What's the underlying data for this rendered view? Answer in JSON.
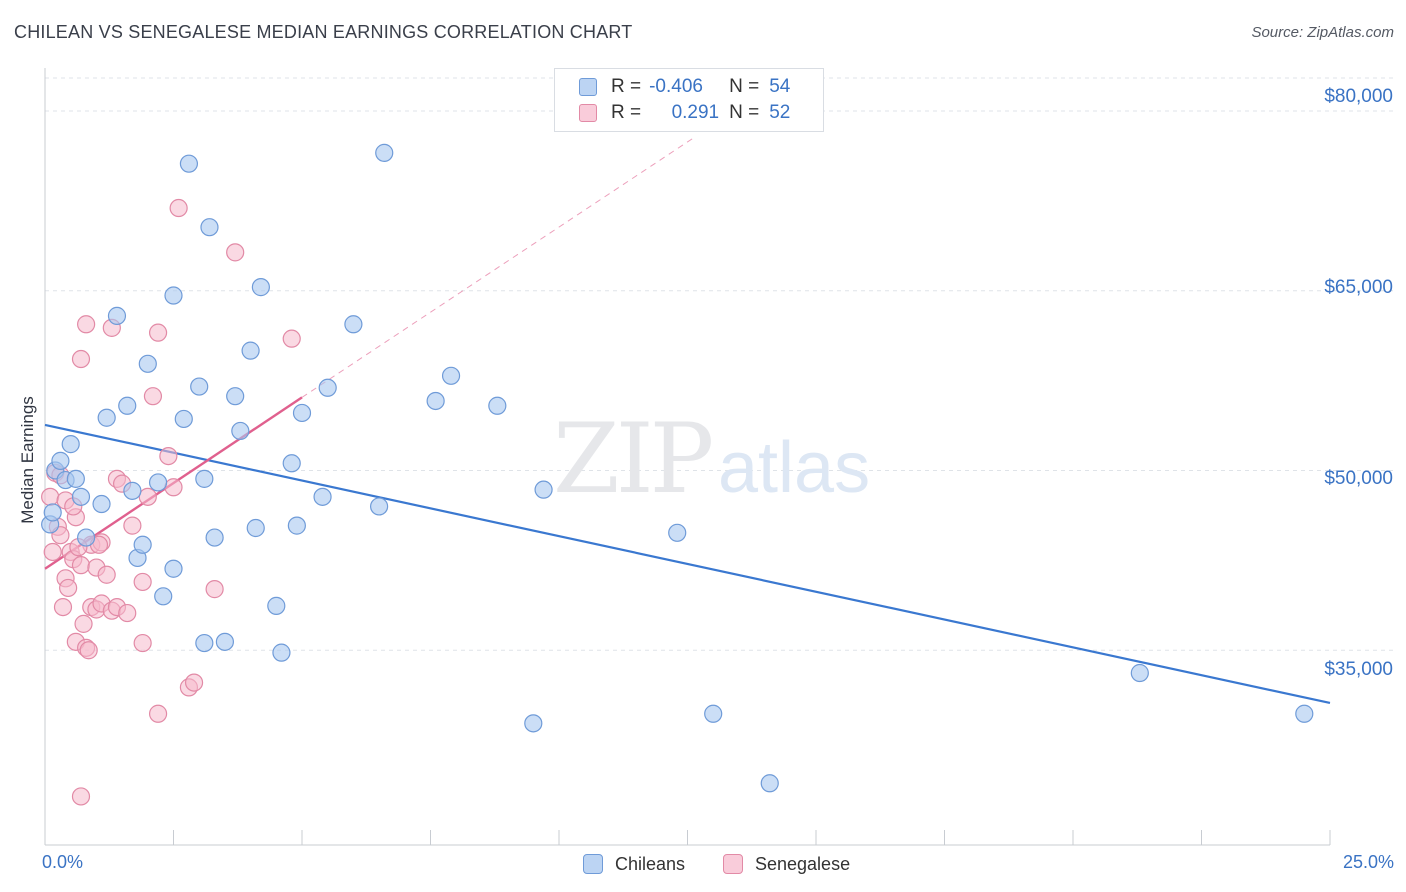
{
  "title": "CHILEAN VS SENEGALESE MEDIAN EARNINGS CORRELATION CHART",
  "source": "Source: ZipAtlas.com",
  "watermark": {
    "zip": "ZIP",
    "atlas": "atlas"
  },
  "legend_top": {
    "rows": [
      {
        "r_label": "R =",
        "r_value": "-0.406",
        "n_label": "N =",
        "n_value": "54"
      },
      {
        "r_label": "R =",
        "r_value": "0.291",
        "n_label": "N =",
        "n_value": "52"
      }
    ]
  },
  "colors": {
    "blue_fill": "#a9c8f0",
    "blue_stroke": "#6f9bd8",
    "blue_line": "#3a78d0",
    "pink_fill": "#f6b9cc",
    "pink_stroke": "#e28aa6",
    "pink_line": "#e0608e",
    "grid": "#dfe3e8",
    "axis_text": "#3a73c4"
  },
  "chart_data": {
    "type": "scatter",
    "title": "CHILEAN VS SENEGALESE MEDIAN EARNINGS CORRELATION CHART",
    "xlabel": "",
    "ylabel": "Median Earnings",
    "xlim": [
      0,
      25
    ],
    "ylim": [
      20000,
      83000
    ],
    "x_tick_labels": [
      "0.0%",
      "25.0%"
    ],
    "y_ticks": [
      35000,
      50000,
      65000,
      80000
    ],
    "y_tick_labels": [
      "$35,000",
      "$50,000",
      "$65,000",
      "$80,000"
    ],
    "series": [
      {
        "name": "Chileans",
        "r": -0.406,
        "n": 54,
        "trend": {
          "x": [
            0,
            25
          ],
          "y": [
            53800,
            30600
          ]
        },
        "points": [
          [
            0.1,
            45500
          ],
          [
            0.2,
            50000
          ],
          [
            0.3,
            50800
          ],
          [
            0.4,
            49200
          ],
          [
            0.5,
            52200
          ],
          [
            0.6,
            49300
          ],
          [
            0.7,
            47800
          ],
          [
            0.8,
            44400
          ],
          [
            1.1,
            47200
          ],
          [
            1.2,
            54400
          ],
          [
            1.4,
            62900
          ],
          [
            1.6,
            55400
          ],
          [
            1.7,
            48300
          ],
          [
            1.8,
            42700
          ],
          [
            1.9,
            43800
          ],
          [
            2.0,
            58900
          ],
          [
            2.2,
            49000
          ],
          [
            2.3,
            39500
          ],
          [
            2.5,
            41800
          ],
          [
            2.5,
            64600
          ],
          [
            2.7,
            54300
          ],
          [
            2.8,
            75600
          ],
          [
            3.0,
            57000
          ],
          [
            3.1,
            49300
          ],
          [
            3.1,
            35600
          ],
          [
            3.2,
            70300
          ],
          [
            3.3,
            44400
          ],
          [
            3.5,
            35700
          ],
          [
            3.7,
            56200
          ],
          [
            3.8,
            53300
          ],
          [
            4.0,
            60000
          ],
          [
            4.1,
            45200
          ],
          [
            4.2,
            65300
          ],
          [
            4.5,
            38700
          ],
          [
            4.6,
            34800
          ],
          [
            4.8,
            50600
          ],
          [
            4.9,
            45400
          ],
          [
            5.0,
            54800
          ],
          [
            5.4,
            47800
          ],
          [
            5.5,
            56900
          ],
          [
            6.0,
            62200
          ],
          [
            6.5,
            47000
          ],
          [
            6.6,
            76500
          ],
          [
            7.6,
            55800
          ],
          [
            7.9,
            57900
          ],
          [
            8.8,
            55400
          ],
          [
            9.5,
            28900
          ],
          [
            9.7,
            48400
          ],
          [
            12.3,
            44800
          ],
          [
            13.0,
            29700
          ],
          [
            14.1,
            23900
          ],
          [
            21.3,
            33100
          ],
          [
            24.5,
            29700
          ],
          [
            0.15,
            46500
          ]
        ]
      },
      {
        "name": "Senegalese",
        "r": 0.291,
        "n": 52,
        "trend": {
          "x": [
            0,
            5.0
          ],
          "y": [
            41800,
            56100
          ]
        },
        "trend_ext": {
          "x": [
            5.0,
            12.6
          ],
          "y": [
            56100,
            77700
          ]
        },
        "points": [
          [
            0.1,
            47800
          ],
          [
            0.15,
            43200
          ],
          [
            0.2,
            49800
          ],
          [
            0.25,
            45300
          ],
          [
            0.3,
            44600
          ],
          [
            0.35,
            38600
          ],
          [
            0.4,
            41000
          ],
          [
            0.4,
            47500
          ],
          [
            0.5,
            43200
          ],
          [
            0.55,
            42600
          ],
          [
            0.6,
            35700
          ],
          [
            0.6,
            46100
          ],
          [
            0.7,
            59300
          ],
          [
            0.7,
            42100
          ],
          [
            0.75,
            37200
          ],
          [
            0.8,
            62200
          ],
          [
            0.8,
            35200
          ],
          [
            0.85,
            35000
          ],
          [
            0.9,
            43800
          ],
          [
            0.9,
            38600
          ],
          [
            1.0,
            41900
          ],
          [
            1.0,
            38400
          ],
          [
            1.1,
            38900
          ],
          [
            1.1,
            44000
          ],
          [
            1.2,
            41300
          ],
          [
            1.3,
            61900
          ],
          [
            1.3,
            38300
          ],
          [
            1.4,
            38600
          ],
          [
            1.4,
            49300
          ],
          [
            1.5,
            48900
          ],
          [
            1.6,
            38100
          ],
          [
            1.7,
            45400
          ],
          [
            1.9,
            40700
          ],
          [
            1.9,
            35600
          ],
          [
            2.0,
            47800
          ],
          [
            2.1,
            56200
          ],
          [
            2.2,
            61500
          ],
          [
            2.2,
            29700
          ],
          [
            2.4,
            51200
          ],
          [
            2.5,
            48600
          ],
          [
            2.6,
            71900
          ],
          [
            2.8,
            31900
          ],
          [
            2.9,
            32300
          ],
          [
            3.3,
            40100
          ],
          [
            3.7,
            68200
          ],
          [
            4.8,
            61000
          ],
          [
            0.7,
            22800
          ],
          [
            0.3,
            49600
          ],
          [
            0.45,
            40200
          ],
          [
            0.65,
            43600
          ],
          [
            1.05,
            43800
          ],
          [
            0.55,
            47000
          ]
        ]
      }
    ],
    "legend": [
      "Chileans",
      "Senegalese"
    ],
    "legend_position": "bottom-center",
    "grid": true
  }
}
